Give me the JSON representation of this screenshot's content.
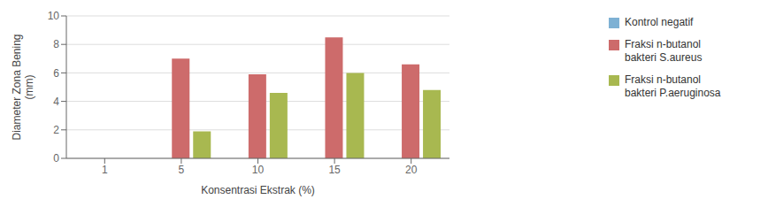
{
  "chart_data": {
    "type": "bar",
    "categories": [
      "1",
      "5",
      "10",
      "15",
      "20"
    ],
    "series": [
      {
        "name": "Kontrol negatif",
        "color": "#7EB1D4",
        "values": [
          0,
          0,
          0,
          0,
          0
        ]
      },
      {
        "name": "Fraksi n-butanol\nbakteri S.aureus",
        "color": "#CD6B6B",
        "values": [
          0,
          7.0,
          5.9,
          8.5,
          6.6
        ]
      },
      {
        "name": "Fraksi n-butanol\nbakteri P.aeruginosa",
        "color": "#A8B850",
        "values": [
          0,
          1.9,
          4.6,
          6.0,
          4.8
        ]
      }
    ],
    "xlabel": "Konsentrasi Ekstrak (%)",
    "ylabel": "Diameter Zona Bening\n(mm)",
    "ylim": [
      0,
      10
    ],
    "yticks": [
      0,
      2,
      4,
      6,
      8,
      10
    ],
    "grid": true,
    "legend": "right"
  }
}
